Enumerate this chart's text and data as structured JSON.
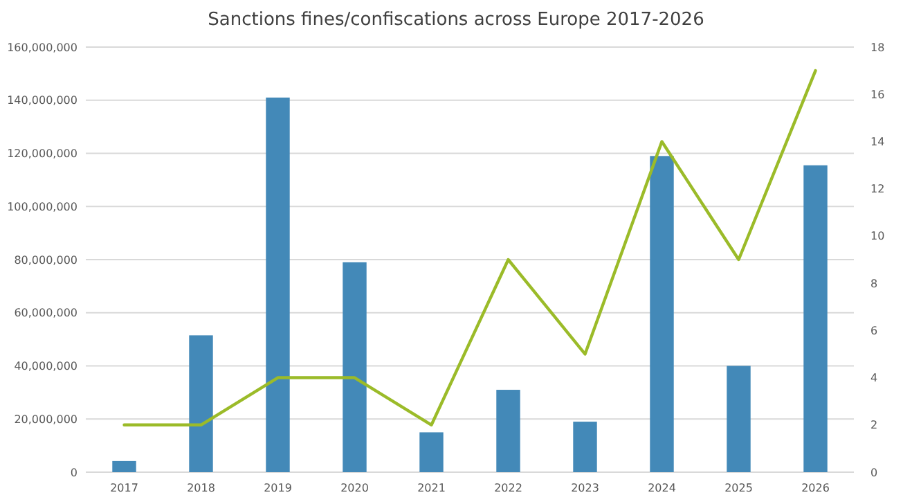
{
  "chart_data": {
    "type": "bar",
    "title": "Sanctions fines/confiscations across Europe 2017-2026",
    "categories": [
      "2017",
      "2018",
      "2019",
      "2020",
      "2021",
      "2022",
      "2023",
      "2024",
      "2025",
      "2026"
    ],
    "series": [
      {
        "color": "#4389b8",
        "values": [
          4200000,
          51500000,
          141000000,
          79000000,
          15000000,
          31000000,
          19000000,
          119000000,
          40000000,
          115500000
        ]
      },
      {
        "type": "line",
        "axis": "y2",
        "color": "#9bbb29",
        "values": [
          2,
          2,
          4,
          4,
          2,
          9,
          5,
          14,
          9,
          17
        ]
      }
    ],
    "ylim": [
      0,
      160000000
    ],
    "yticks": [
      {
        "value": 0,
        "label": "0"
      },
      {
        "value": 20000000,
        "label": "20,000,000"
      },
      {
        "value": 40000000,
        "label": "40,000,000"
      },
      {
        "value": 60000000,
        "label": "60,000,000"
      },
      {
        "value": 80000000,
        "label": "80,000,000"
      },
      {
        "value": 100000000,
        "label": "100,000,000"
      },
      {
        "value": 120000000,
        "label": "120,000,000"
      },
      {
        "value": 140000000,
        "label": "140,000,000"
      },
      {
        "value": 160000000,
        "label": "160,000,000"
      }
    ],
    "y2lim": [
      0,
      18
    ],
    "y2ticks": [
      0,
      2,
      4,
      6,
      8,
      10,
      12,
      14,
      16,
      18
    ],
    "grid": "y",
    "marker": "none",
    "line_style": "solid"
  }
}
